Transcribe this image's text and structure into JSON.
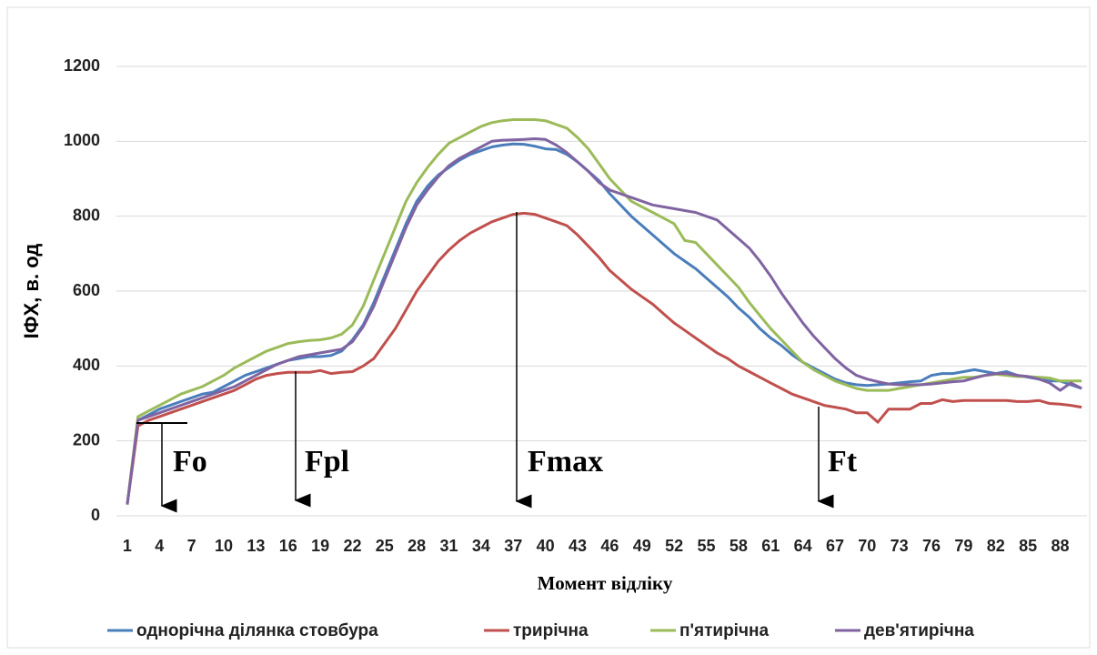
{
  "chart_data": {
    "type": "line",
    "y_label": "ІФХ, в. од",
    "x_label": "Момент відліку",
    "annotations": [
      "Fo",
      "Fpl",
      "Fmax",
      "Ft"
    ],
    "categories": [
      "1",
      null,
      null,
      "4",
      null,
      null,
      "7",
      null,
      null,
      "10",
      null,
      null,
      "13",
      null,
      null,
      "16",
      null,
      null,
      "19",
      null,
      null,
      "22",
      null,
      null,
      "25",
      null,
      null,
      "28",
      null,
      null,
      "31",
      null,
      null,
      "34",
      null,
      null,
      "37",
      null,
      null,
      "40",
      null,
      null,
      "43",
      null,
      null,
      "46",
      null,
      null,
      "49",
      null,
      null,
      "52",
      null,
      null,
      "55",
      null,
      null,
      "58",
      null,
      null,
      "61",
      null,
      null,
      "64",
      null,
      null,
      "67",
      null,
      null,
      "70",
      null,
      null,
      "73",
      null,
      null,
      "76",
      null,
      null,
      "79",
      null,
      null,
      "82",
      null,
      null,
      "85",
      null,
      null,
      "88",
      null,
      null
    ],
    "ylim": [
      0,
      1200
    ],
    "yticks": [
      0,
      200,
      400,
      600,
      800,
      1000,
      1200
    ],
    "grid": true,
    "legend": "bottom",
    "series": [
      {
        "name": "однорічна ділянка стовбура",
        "color": "#4a7ebb",
        "values": [
          30,
          255,
          270,
          285,
          295,
          305,
          315,
          325,
          330,
          345,
          360,
          375,
          385,
          395,
          405,
          415,
          420,
          425,
          425,
          428,
          440,
          470,
          510,
          570,
          640,
          710,
          780,
          840,
          880,
          910,
          930,
          950,
          965,
          975,
          985,
          990,
          993,
          992,
          987,
          980,
          978,
          965,
          945,
          920,
          895,
          860,
          830,
          800,
          775,
          750,
          725,
          700,
          680,
          660,
          635,
          610,
          585,
          555,
          530,
          500,
          475,
          455,
          430,
          410,
          395,
          380,
          365,
          355,
          350,
          348,
          350,
          352,
          355,
          358,
          360,
          375,
          380,
          380,
          385,
          390,
          385,
          380,
          385,
          375,
          370,
          365,
          360,
          360,
          350,
          340
        ]
      },
      {
        "name": "трирічна",
        "color": "#c0504d",
        "values": [
          30,
          240,
          255,
          265,
          275,
          285,
          295,
          305,
          315,
          325,
          335,
          350,
          365,
          375,
          380,
          383,
          383,
          383,
          388,
          380,
          383,
          385,
          400,
          420,
          460,
          500,
          550,
          600,
          640,
          680,
          710,
          735,
          755,
          770,
          785,
          795,
          805,
          808,
          805,
          795,
          785,
          775,
          750,
          720,
          690,
          655,
          630,
          605,
          585,
          565,
          540,
          515,
          495,
          475,
          455,
          435,
          420,
          400,
          385,
          370,
          355,
          340,
          325,
          315,
          305,
          295,
          290,
          285,
          275,
          275,
          250,
          285,
          285,
          285,
          300,
          300,
          310,
          305,
          308,
          308,
          308,
          308,
          308,
          305,
          305,
          308,
          300,
          298,
          295,
          290
        ]
      },
      {
        "name": "п'ятирічна",
        "color": "#9bbb59",
        "values": [
          30,
          265,
          280,
          295,
          310,
          325,
          335,
          345,
          360,
          375,
          395,
          410,
          425,
          440,
          450,
          460,
          465,
          468,
          470,
          475,
          485,
          510,
          560,
          630,
          700,
          770,
          840,
          890,
          930,
          965,
          995,
          1010,
          1025,
          1040,
          1050,
          1055,
          1058,
          1058,
          1058,
          1055,
          1045,
          1035,
          1010,
          980,
          940,
          900,
          870,
          840,
          825,
          810,
          795,
          780,
          735,
          730,
          700,
          670,
          640,
          610,
          570,
          535,
          500,
          470,
          440,
          410,
          390,
          375,
          360,
          350,
          340,
          335,
          335,
          335,
          340,
          345,
          350,
          355,
          360,
          365,
          370,
          370,
          375,
          378,
          375,
          372,
          372,
          370,
          368,
          360,
          360,
          360
        ]
      },
      {
        "name": "дев'ятирічна",
        "color": "#8064a2",
        "values": [
          30,
          255,
          265,
          275,
          285,
          295,
          305,
          315,
          325,
          335,
          345,
          360,
          375,
          390,
          405,
          415,
          425,
          430,
          435,
          440,
          445,
          465,
          505,
          560,
          630,
          700,
          770,
          830,
          870,
          905,
          935,
          955,
          970,
          985,
          1000,
          1003,
          1004,
          1005,
          1007,
          1005,
          990,
          970,
          945,
          920,
          890,
          870,
          860,
          850,
          840,
          830,
          825,
          820,
          815,
          810,
          800,
          790,
          765,
          740,
          715,
          680,
          640,
          595,
          555,
          515,
          480,
          450,
          420,
          395,
          375,
          365,
          358,
          352,
          350,
          350,
          350,
          352,
          355,
          358,
          360,
          368,
          375,
          380,
          380,
          375,
          372,
          365,
          355,
          335,
          355,
          340
        ]
      }
    ]
  }
}
